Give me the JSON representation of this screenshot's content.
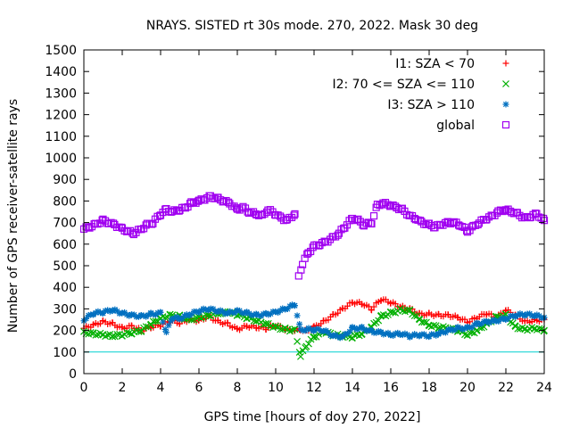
{
  "chart_data": {
    "type": "scatter",
    "title": "NRAYS. SISTED rt 30s mode. 270, 2022. Mask 30 deg",
    "xlabel": "GPS time [hours of doy 270, 2022]",
    "ylabel": "Number of GPS receiver-satellite rays",
    "xlim": [
      0,
      24
    ],
    "ylim": [
      0,
      1500
    ],
    "xticks": [
      0,
      2,
      4,
      6,
      8,
      10,
      12,
      14,
      16,
      18,
      20,
      22,
      24
    ],
    "yticks": [
      0,
      100,
      200,
      300,
      400,
      500,
      600,
      700,
      800,
      900,
      1000,
      1100,
      1200,
      1300,
      1400,
      1500
    ],
    "reference_line": {
      "y": 100,
      "color": "#00d0d0"
    },
    "legend_position": "top-right",
    "series": [
      {
        "name": "I1: SZA < 70",
        "color": "#ff0000",
        "marker": "+",
        "x": [
          0,
          0.5,
          1,
          1.5,
          2,
          2.5,
          3,
          3.5,
          4,
          4.5,
          5,
          5.5,
          6,
          6.5,
          7,
          7.5,
          8,
          8.5,
          9,
          9.5,
          10,
          10.5,
          11,
          11.3,
          11.6,
          12,
          12.5,
          13,
          13.5,
          14,
          14.5,
          15,
          15.5,
          16,
          16.5,
          17,
          17.5,
          18,
          18.5,
          19,
          19.5,
          20,
          20.5,
          21,
          21.5,
          22,
          22.5,
          23,
          23.5,
          24
        ],
        "y": [
          210,
          225,
          240,
          230,
          210,
          220,
          200,
          215,
          225,
          245,
          235,
          250,
          245,
          265,
          240,
          230,
          205,
          220,
          215,
          210,
          225,
          205,
          200,
          205,
          195,
          215,
          240,
          270,
          300,
          330,
          325,
          300,
          345,
          330,
          310,
          300,
          275,
          275,
          270,
          270,
          260,
          240,
          260,
          280,
          260,
          295,
          270,
          240,
          245,
          250
        ]
      },
      {
        "name": "I2: 70 <= SZA <= 110",
        "color": "#00b000",
        "marker": "x",
        "x": [
          0,
          0.5,
          1,
          1.5,
          2,
          2.5,
          3,
          3.5,
          4,
          4.5,
          5,
          5.5,
          6,
          6.5,
          7,
          7.5,
          8,
          8.5,
          9,
          9.5,
          10,
          10.5,
          11,
          11.3,
          11.6,
          12,
          12.5,
          13,
          13.5,
          14,
          14.5,
          15,
          15.5,
          16,
          16.5,
          17,
          17.5,
          18,
          18.5,
          19,
          19.5,
          20,
          20.5,
          21,
          21.5,
          22,
          22.5,
          23,
          23.5,
          24
        ],
        "y": [
          190,
          185,
          180,
          175,
          180,
          190,
          200,
          230,
          255,
          270,
          265,
          250,
          260,
          270,
          280,
          285,
          275,
          260,
          245,
          230,
          215,
          205,
          200,
          80,
          130,
          170,
          195,
          180,
          175,
          170,
          185,
          215,
          265,
          280,
          295,
          290,
          250,
          225,
          215,
          210,
          200,
          180,
          200,
          230,
          260,
          270,
          215,
          205,
          210,
          200
        ]
      },
      {
        "name": "I3: SZA > 110",
        "color": "#0070c0",
        "marker": "*",
        "x": [
          0,
          0.5,
          1,
          1.5,
          2,
          2.5,
          3,
          3.5,
          4,
          4.3,
          4.6,
          5,
          5.5,
          6,
          6.5,
          7,
          7.5,
          8,
          8.5,
          9,
          9.5,
          10,
          10.5,
          11,
          11.3,
          11.6,
          12,
          12.5,
          13,
          13.5,
          14,
          14.5,
          15,
          15.5,
          16,
          16.5,
          17,
          17.5,
          18,
          18.5,
          19,
          19.5,
          20,
          20.5,
          21,
          21.5,
          22,
          22.5,
          23,
          23.5,
          24
        ],
        "y": [
          250,
          280,
          285,
          295,
          280,
          270,
          265,
          275,
          280,
          190,
          260,
          255,
          275,
          290,
          300,
          290,
          280,
          290,
          280,
          270,
          275,
          285,
          300,
          320,
          200,
          205,
          205,
          200,
          175,
          170,
          210,
          210,
          195,
          190,
          180,
          185,
          175,
          180,
          175,
          185,
          200,
          210,
          210,
          230,
          240,
          245,
          255,
          270,
          275,
          270,
          260
        ]
      },
      {
        "name": "global",
        "color": "#a000f0",
        "marker": "square",
        "x": [
          0,
          0.3,
          0.6,
          1,
          1.3,
          1.6,
          2,
          2.3,
          2.6,
          3,
          3.3,
          3.6,
          4,
          4.3,
          4.6,
          5,
          5.3,
          5.6,
          6,
          6.3,
          6.6,
          7,
          7.3,
          7.6,
          8,
          8.3,
          8.6,
          9,
          9.3,
          9.6,
          10,
          10.3,
          10.6,
          11,
          11.2,
          11.4,
          11.7,
          12,
          12.3,
          12.6,
          13,
          13.3,
          13.6,
          14,
          14.3,
          14.6,
          15,
          15.3,
          15.6,
          16,
          16.3,
          16.6,
          17,
          17.3,
          17.6,
          18,
          18.3,
          18.6,
          19,
          19.3,
          19.6,
          20,
          20.3,
          20.6,
          21,
          21.3,
          21.6,
          22,
          22.3,
          22.6,
          23,
          23.3,
          23.6,
          24
        ],
        "y": [
          670,
          680,
          690,
          710,
          700,
          690,
          670,
          660,
          650,
          670,
          690,
          700,
          740,
          760,
          750,
          760,
          770,
          790,
          800,
          810,
          820,
          810,
          800,
          790,
          760,
          770,
          750,
          740,
          730,
          760,
          740,
          720,
          710,
          740,
          450,
          510,
          560,
          590,
          600,
          610,
          630,
          650,
          680,
          720,
          710,
          690,
          700,
          780,
          790,
          780,
          770,
          760,
          730,
          720,
          700,
          690,
          680,
          690,
          700,
          700,
          690,
          660,
          680,
          700,
          720,
          730,
          750,
          760,
          750,
          740,
          720,
          730,
          740,
          710
        ]
      }
    ]
  }
}
